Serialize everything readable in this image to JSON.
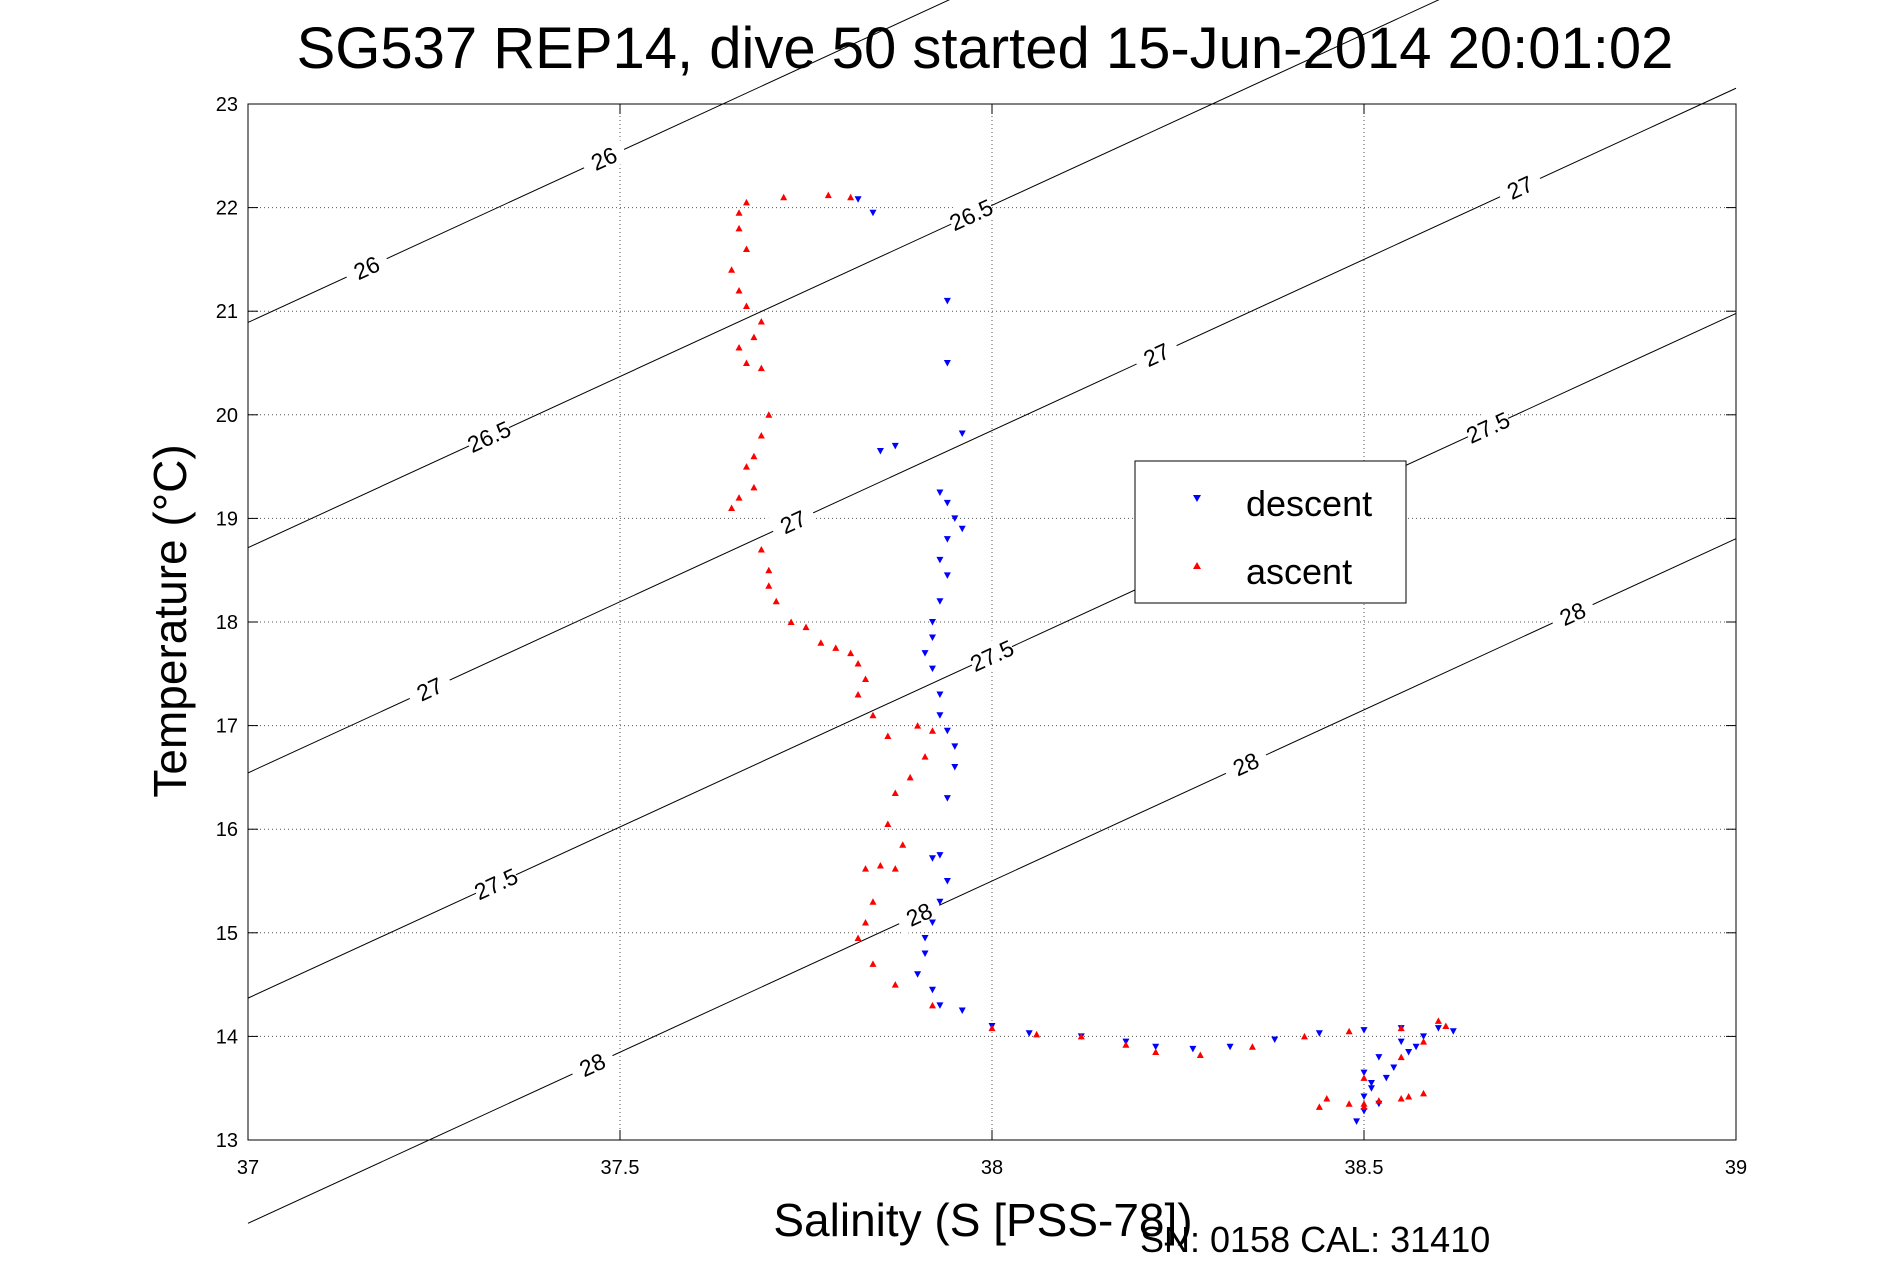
{
  "chart_data": {
    "type": "scatter",
    "title": "SG537 REP14, dive 50 started 15-Jun-2014 20:01:02",
    "xlabel": "Salinity (S [PSS-78])",
    "ylabel": "Temperature (°C)",
    "footnote": "SN: 0158  CAL: 31410",
    "xlim": [
      37,
      39
    ],
    "ylim": [
      13,
      23
    ],
    "x_ticks": [
      "37",
      "37.5",
      "38",
      "38.5",
      "39"
    ],
    "y_ticks": [
      "13",
      "14",
      "15",
      "16",
      "17",
      "18",
      "19",
      "20",
      "21",
      "22",
      "23"
    ],
    "grid": true,
    "legend_position": "center-right",
    "density_contours": [
      {
        "sigma": "26",
        "labels": [
          "26",
          "26"
        ]
      },
      {
        "sigma": "26.5",
        "labels": [
          "26.5",
          "26.5"
        ]
      },
      {
        "sigma": "27",
        "labels": [
          "27",
          "27",
          "27",
          "27"
        ]
      },
      {
        "sigma": "27.5",
        "labels": [
          "27.5",
          "27.5",
          "27.5"
        ]
      },
      {
        "sigma": "28",
        "labels": [
          "28",
          "28",
          "28",
          "28"
        ]
      }
    ],
    "series": [
      {
        "name": "descent",
        "color": "#0000ff",
        "marker": "triangle-down",
        "points": [
          [
            37.82,
            22.08
          ],
          [
            37.84,
            21.95
          ],
          [
            37.94,
            21.1
          ],
          [
            37.94,
            20.5
          ],
          [
            37.96,
            19.82
          ],
          [
            37.87,
            19.7
          ],
          [
            37.85,
            19.65
          ],
          [
            37.93,
            19.25
          ],
          [
            37.94,
            19.15
          ],
          [
            37.95,
            19.0
          ],
          [
            37.96,
            18.9
          ],
          [
            37.94,
            18.8
          ],
          [
            37.93,
            18.6
          ],
          [
            37.94,
            18.45
          ],
          [
            37.93,
            18.2
          ],
          [
            37.92,
            18.0
          ],
          [
            37.92,
            17.85
          ],
          [
            37.91,
            17.7
          ],
          [
            37.92,
            17.55
          ],
          [
            37.93,
            17.3
          ],
          [
            37.93,
            17.1
          ],
          [
            37.94,
            16.95
          ],
          [
            37.95,
            16.8
          ],
          [
            37.95,
            16.6
          ],
          [
            37.94,
            16.3
          ],
          [
            37.93,
            15.75
          ],
          [
            37.92,
            15.72
          ],
          [
            37.94,
            15.5
          ],
          [
            37.93,
            15.3
          ],
          [
            37.92,
            15.1
          ],
          [
            37.91,
            14.95
          ],
          [
            37.91,
            14.8
          ],
          [
            37.9,
            14.6
          ],
          [
            37.92,
            14.45
          ],
          [
            37.93,
            14.3
          ],
          [
            37.96,
            14.25
          ],
          [
            38.0,
            14.1
          ],
          [
            38.05,
            14.03
          ],
          [
            38.12,
            14.0
          ],
          [
            38.18,
            13.95
          ],
          [
            38.22,
            13.9
          ],
          [
            38.27,
            13.88
          ],
          [
            38.32,
            13.9
          ],
          [
            38.38,
            13.97
          ],
          [
            38.44,
            14.03
          ],
          [
            38.5,
            14.06
          ],
          [
            38.55,
            14.08
          ],
          [
            38.6,
            14.08
          ],
          [
            38.62,
            14.05
          ],
          [
            38.55,
            13.95
          ],
          [
            38.52,
            13.8
          ],
          [
            38.5,
            13.65
          ],
          [
            38.51,
            13.5
          ],
          [
            38.5,
            13.42
          ],
          [
            38.52,
            13.35
          ],
          [
            38.5,
            13.28
          ],
          [
            38.49,
            13.18
          ],
          [
            38.53,
            13.6
          ],
          [
            38.51,
            13.55
          ],
          [
            38.54,
            13.7
          ],
          [
            38.56,
            13.85
          ],
          [
            38.57,
            13.9
          ],
          [
            38.58,
            14.0
          ]
        ]
      },
      {
        "name": "ascent",
        "color": "#ff0000",
        "marker": "triangle-up",
        "points": [
          [
            37.81,
            22.1
          ],
          [
            37.78,
            22.12
          ],
          [
            37.72,
            22.1
          ],
          [
            37.67,
            22.05
          ],
          [
            37.66,
            21.95
          ],
          [
            37.66,
            21.8
          ],
          [
            37.67,
            21.6
          ],
          [
            37.65,
            21.4
          ],
          [
            37.66,
            21.2
          ],
          [
            37.67,
            21.05
          ],
          [
            37.69,
            20.9
          ],
          [
            37.68,
            20.75
          ],
          [
            37.66,
            20.65
          ],
          [
            37.67,
            20.5
          ],
          [
            37.69,
            20.45
          ],
          [
            37.7,
            20.0
          ],
          [
            37.69,
            19.8
          ],
          [
            37.68,
            19.6
          ],
          [
            37.67,
            19.5
          ],
          [
            37.68,
            19.3
          ],
          [
            37.66,
            19.2
          ],
          [
            37.65,
            19.1
          ],
          [
            37.69,
            18.7
          ],
          [
            37.7,
            18.5
          ],
          [
            37.7,
            18.35
          ],
          [
            37.71,
            18.2
          ],
          [
            37.73,
            18.0
          ],
          [
            37.75,
            17.95
          ],
          [
            37.77,
            17.8
          ],
          [
            37.79,
            17.75
          ],
          [
            37.81,
            17.7
          ],
          [
            37.82,
            17.6
          ],
          [
            37.83,
            17.45
          ],
          [
            37.82,
            17.3
          ],
          [
            37.84,
            17.1
          ],
          [
            37.86,
            16.9
          ],
          [
            37.9,
            17.0
          ],
          [
            37.92,
            16.95
          ],
          [
            37.91,
            16.7
          ],
          [
            37.89,
            16.5
          ],
          [
            37.87,
            16.35
          ],
          [
            37.86,
            16.05
          ],
          [
            37.88,
            15.85
          ],
          [
            37.85,
            15.65
          ],
          [
            37.83,
            15.62
          ],
          [
            37.87,
            15.62
          ],
          [
            37.84,
            15.3
          ],
          [
            37.83,
            15.1
          ],
          [
            37.82,
            14.95
          ],
          [
            37.84,
            14.7
          ],
          [
            37.87,
            14.5
          ],
          [
            37.92,
            14.3
          ],
          [
            38.0,
            14.08
          ],
          [
            38.06,
            14.02
          ],
          [
            38.12,
            14.0
          ],
          [
            38.18,
            13.92
          ],
          [
            38.22,
            13.85
          ],
          [
            38.28,
            13.82
          ],
          [
            38.35,
            13.9
          ],
          [
            38.42,
            14.0
          ],
          [
            38.48,
            14.05
          ],
          [
            38.55,
            14.08
          ],
          [
            38.6,
            14.15
          ],
          [
            38.61,
            14.1
          ],
          [
            38.58,
            13.95
          ],
          [
            38.55,
            13.8
          ],
          [
            38.5,
            13.6
          ],
          [
            38.45,
            13.4
          ],
          [
            38.5,
            13.35
          ],
          [
            38.55,
            13.4
          ],
          [
            38.58,
            13.45
          ],
          [
            38.5,
            13.32
          ],
          [
            38.44,
            13.32
          ],
          [
            38.48,
            13.35
          ],
          [
            38.52,
            13.38
          ],
          [
            38.56,
            13.42
          ]
        ]
      }
    ]
  }
}
